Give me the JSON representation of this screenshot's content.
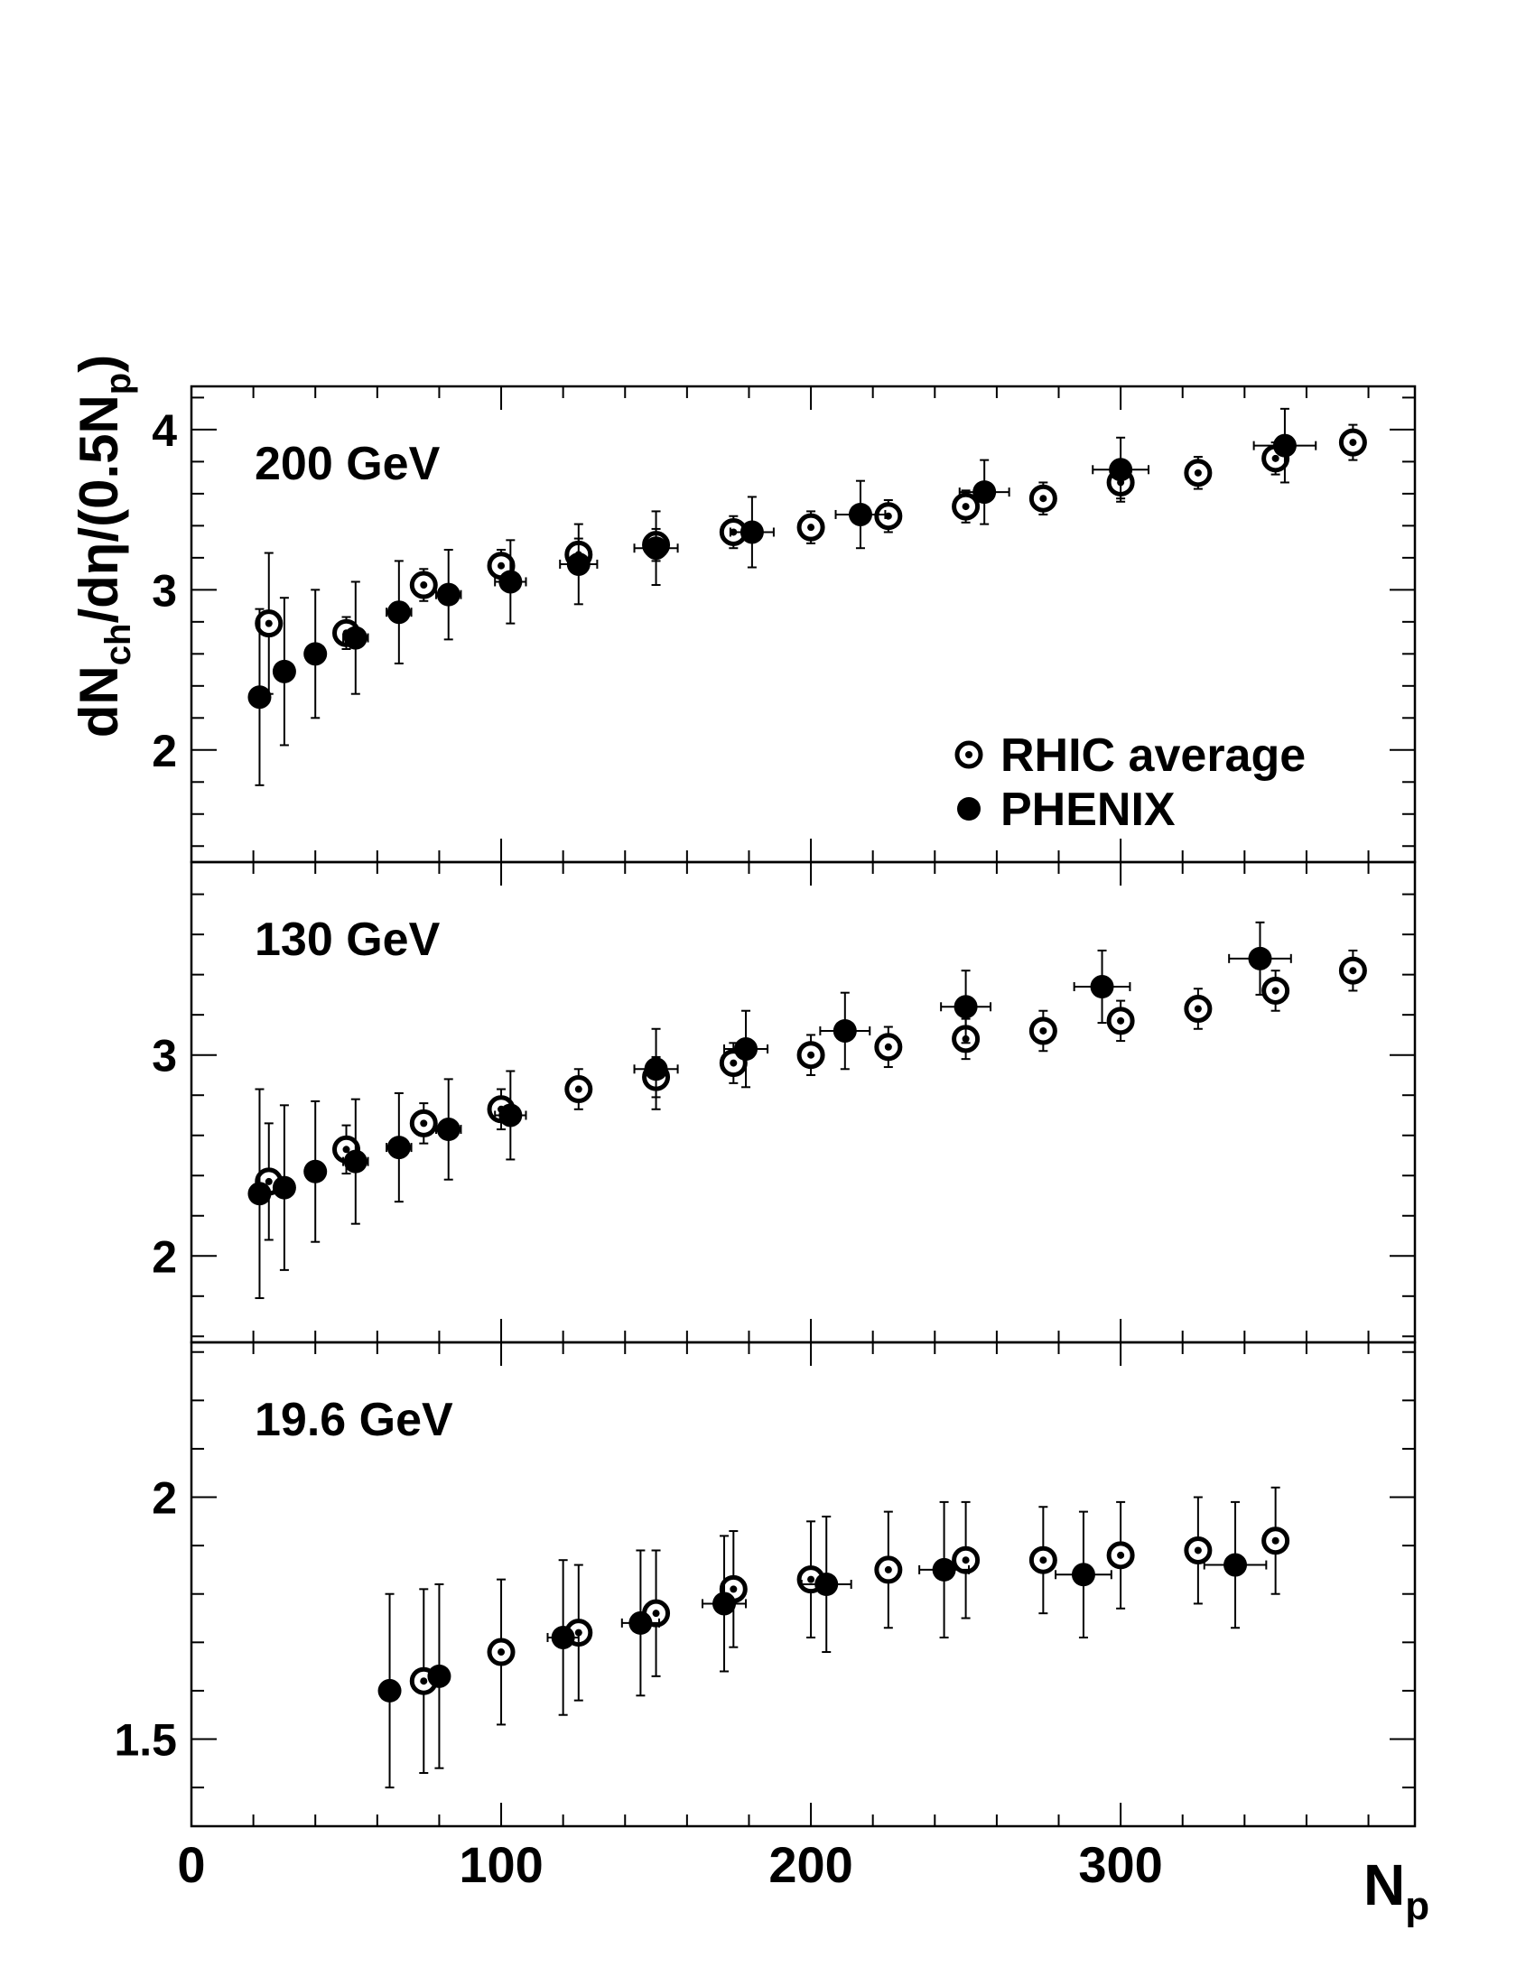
{
  "chart_data": {
    "type": "scatter",
    "xlabel": "N",
    "xlabel_sub": "p",
    "ylabel_parts": [
      {
        "t": "dN",
        "sub": false
      },
      {
        "t": "ch",
        "sub": true
      },
      {
        "t": "/dη/(0.5N",
        "sub": false
      },
      {
        "t": "p",
        "sub": true
      },
      {
        "t": ")",
        "sub": false
      }
    ],
    "xlim": [
      0,
      395
    ],
    "xticks": [
      0,
      100,
      200,
      300
    ],
    "legend": {
      "placement": "right",
      "entries": [
        {
          "label": "RHIC average",
          "marker": "open-circle-dot"
        },
        {
          "label": "PHENIX",
          "marker": "filled-circle"
        }
      ]
    },
    "panels": [
      {
        "label": "200 GeV",
        "ylim": [
          1.3,
          4.27
        ],
        "yticks": [
          2,
          3,
          4
        ],
        "series": [
          {
            "name": "RHIC average",
            "marker": "open-circle-dot",
            "points": [
              {
                "x": 25,
                "y": 2.79,
                "yerr": 0.44
              },
              {
                "x": 50,
                "y": 2.73,
                "yerr": 0.1,
                "xerr": 4
              },
              {
                "x": 75,
                "y": 3.03,
                "yerr": 0.1
              },
              {
                "x": 100,
                "y": 3.15,
                "yerr": 0.1,
                "xerr": 3
              },
              {
                "x": 125,
                "y": 3.22,
                "yerr": 0.1
              },
              {
                "x": 150,
                "y": 3.28,
                "yerr": 0.1
              },
              {
                "x": 175,
                "y": 3.36,
                "yerr": 0.1
              },
              {
                "x": 200,
                "y": 3.39,
                "yerr": 0.1
              },
              {
                "x": 225,
                "y": 3.46,
                "yerr": 0.1
              },
              {
                "x": 250,
                "y": 3.52,
                "yerr": 0.1
              },
              {
                "x": 275,
                "y": 3.57,
                "yerr": 0.1
              },
              {
                "x": 300,
                "y": 3.67,
                "yerr": 0.1
              },
              {
                "x": 325,
                "y": 3.73,
                "yerr": 0.1
              },
              {
                "x": 350,
                "y": 3.82,
                "yerr": 0.1
              },
              {
                "x": 375,
                "y": 3.92,
                "yerr": 0.11
              }
            ]
          },
          {
            "name": "PHENIX",
            "marker": "filled-circle",
            "points": [
              {
                "x": 22,
                "y": 2.33,
                "yerr": 0.55,
                "xerr": 3
              },
              {
                "x": 30,
                "y": 2.49,
                "yerr": 0.46,
                "xerr": 3
              },
              {
                "x": 40,
                "y": 2.6,
                "yerr": 0.4,
                "xerr": 3
              },
              {
                "x": 53,
                "y": 2.7,
                "yerr": 0.35,
                "xerr": 4
              },
              {
                "x": 67,
                "y": 2.86,
                "yerr": 0.32,
                "xerr": 4
              },
              {
                "x": 83,
                "y": 2.97,
                "yerr": 0.28,
                "xerr": 4
              },
              {
                "x": 103,
                "y": 3.05,
                "yerr": 0.26,
                "xerr": 5
              },
              {
                "x": 125,
                "y": 3.16,
                "yerr": 0.25,
                "xerr": 6
              },
              {
                "x": 150,
                "y": 3.26,
                "yerr": 0.23,
                "xerr": 7
              },
              {
                "x": 181,
                "y": 3.36,
                "yerr": 0.22,
                "xerr": 7
              },
              {
                "x": 216,
                "y": 3.47,
                "yerr": 0.21,
                "xerr": 8
              },
              {
                "x": 256,
                "y": 3.61,
                "yerr": 0.2,
                "xerr": 8
              },
              {
                "x": 300,
                "y": 3.75,
                "yerr": 0.2,
                "xerr": 9
              },
              {
                "x": 353,
                "y": 3.9,
                "yerr": 0.23,
                "xerr": 10
              }
            ]
          }
        ]
      },
      {
        "label": "130 GeV",
        "ylim": [
          1.57,
          3.96
        ],
        "yticks": [
          2,
          3
        ],
        "series": [
          {
            "name": "RHIC average",
            "marker": "open-circle-dot",
            "points": [
              {
                "x": 25,
                "y": 2.37,
                "yerr": 0.29
              },
              {
                "x": 50,
                "y": 2.53,
                "yerr": 0.12,
                "xerr": 4
              },
              {
                "x": 75,
                "y": 2.66,
                "yerr": 0.1
              },
              {
                "x": 100,
                "y": 2.73,
                "yerr": 0.1,
                "xerr": 3
              },
              {
                "x": 125,
                "y": 2.83,
                "yerr": 0.1
              },
              {
                "x": 150,
                "y": 2.89,
                "yerr": 0.1
              },
              {
                "x": 175,
                "y": 2.96,
                "yerr": 0.1
              },
              {
                "x": 200,
                "y": 3.0,
                "yerr": 0.1
              },
              {
                "x": 225,
                "y": 3.04,
                "yerr": 0.1
              },
              {
                "x": 250,
                "y": 3.08,
                "yerr": 0.1
              },
              {
                "x": 275,
                "y": 3.12,
                "yerr": 0.1
              },
              {
                "x": 300,
                "y": 3.17,
                "yerr": 0.1
              },
              {
                "x": 325,
                "y": 3.23,
                "yerr": 0.1
              },
              {
                "x": 350,
                "y": 3.32,
                "yerr": 0.1
              },
              {
                "x": 375,
                "y": 3.42,
                "yerr": 0.1
              }
            ]
          },
          {
            "name": "PHENIX",
            "marker": "filled-circle",
            "points": [
              {
                "x": 22,
                "y": 2.31,
                "yerr": 0.52,
                "xerr": 3
              },
              {
                "x": 30,
                "y": 2.34,
                "yerr": 0.41,
                "xerr": 3
              },
              {
                "x": 40,
                "y": 2.42,
                "yerr": 0.35,
                "xerr": 3
              },
              {
                "x": 53,
                "y": 2.47,
                "yerr": 0.31,
                "xerr": 4
              },
              {
                "x": 67,
                "y": 2.54,
                "yerr": 0.27,
                "xerr": 4
              },
              {
                "x": 83,
                "y": 2.63,
                "yerr": 0.25,
                "xerr": 4
              },
              {
                "x": 103,
                "y": 2.7,
                "yerr": 0.22,
                "xerr": 5
              },
              {
                "x": 150,
                "y": 2.93,
                "yerr": 0.2,
                "xerr": 7
              },
              {
                "x": 179,
                "y": 3.03,
                "yerr": 0.19,
                "xerr": 7
              },
              {
                "x": 211,
                "y": 3.12,
                "yerr": 0.19,
                "xerr": 8
              },
              {
                "x": 250,
                "y": 3.24,
                "yerr": 0.18,
                "xerr": 8
              },
              {
                "x": 294,
                "y": 3.34,
                "yerr": 0.18,
                "xerr": 9
              },
              {
                "x": 345,
                "y": 3.48,
                "yerr": 0.18,
                "xerr": 10
              }
            ]
          }
        ]
      },
      {
        "label": "19.6 GeV",
        "ylim": [
          1.32,
          2.32
        ],
        "yticks": [
          1.5,
          2
        ],
        "series": [
          {
            "name": "RHIC average",
            "marker": "open-circle-dot",
            "points": [
              {
                "x": 75,
                "y": 1.62,
                "yerr": 0.19,
                "xerr": 3
              },
              {
                "x": 100,
                "y": 1.68,
                "yerr": 0.15
              },
              {
                "x": 125,
                "y": 1.72,
                "yerr": 0.14
              },
              {
                "x": 150,
                "y": 1.76,
                "yerr": 0.13
              },
              {
                "x": 175,
                "y": 1.81,
                "yerr": 0.12
              },
              {
                "x": 200,
                "y": 1.83,
                "yerr": 0.12
              },
              {
                "x": 225,
                "y": 1.85,
                "yerr": 0.12
              },
              {
                "x": 250,
                "y": 1.87,
                "yerr": 0.12
              },
              {
                "x": 275,
                "y": 1.87,
                "yerr": 0.11
              },
              {
                "x": 300,
                "y": 1.88,
                "yerr": 0.11
              },
              {
                "x": 325,
                "y": 1.89,
                "yerr": 0.11
              },
              {
                "x": 350,
                "y": 1.91,
                "yerr": 0.11
              }
            ]
          },
          {
            "name": "PHENIX",
            "marker": "filled-circle",
            "points": [
              {
                "x": 64,
                "y": 1.6,
                "yerr": 0.2,
                "xerr": 3
              },
              {
                "x": 80,
                "y": 1.63,
                "yerr": 0.19,
                "xerr": 3
              },
              {
                "x": 120,
                "y": 1.71,
                "yerr": 0.16,
                "xerr": 5
              },
              {
                "x": 145,
                "y": 1.74,
                "yerr": 0.15,
                "xerr": 6
              },
              {
                "x": 172,
                "y": 1.78,
                "yerr": 0.14,
                "xerr": 7
              },
              {
                "x": 205,
                "y": 1.82,
                "yerr": 0.14,
                "xerr": 8
              },
              {
                "x": 243,
                "y": 1.85,
                "yerr": 0.14,
                "xerr": 8
              },
              {
                "x": 288,
                "y": 1.84,
                "yerr": 0.13,
                "xerr": 9
              },
              {
                "x": 337,
                "y": 1.86,
                "yerr": 0.13,
                "xerr": 10
              }
            ]
          }
        ]
      }
    ]
  }
}
